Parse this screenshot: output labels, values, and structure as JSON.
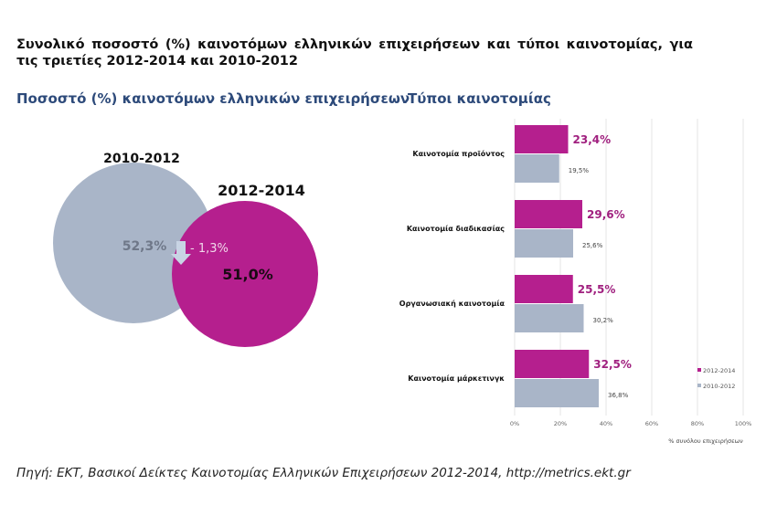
{
  "title": "Συνολικό ποσοστό (%) καινοτόμων ελληνικών επιχειρήσεων και τύποι καινοτομίας, για τις τριετίες 2012-2014 και 2010-2012",
  "source": "Πηγή: ΕΚΤ, Βασικοί Δείκτες Καινοτομίας Ελληνικών Επιχειρήσεων 2012-2014, http://metrics.ekt.gr",
  "colors": {
    "magenta": "#b51f8e",
    "gray": "#a9b5c8",
    "subtitle": "#2d4a7a",
    "arrow": "#c8d4e4"
  },
  "chart_data": [
    {
      "type": "venn",
      "title": "Ποσοστό (%) καινοτόμων ελληνικών επιχειρήσεων",
      "series": [
        {
          "name": "2010-2012",
          "value": 52.3,
          "label": "52,3%"
        },
        {
          "name": "2012-2014",
          "value": 51.0,
          "label": "51,0%"
        }
      ],
      "change_label": "- 1,3%"
    },
    {
      "type": "bar",
      "orientation": "horizontal",
      "title": "Τύποι καινοτομίας",
      "categories": [
        "Καινοτομία προϊόντος",
        "Καινοτομία διαδικασίας",
        "Οργανωσιακή καινοτομία",
        "Καινοτομία μάρκετινγκ"
      ],
      "series": [
        {
          "name": "2012-2014",
          "values": [
            23.4,
            29.6,
            25.5,
            32.5
          ],
          "labels": [
            "23,4%",
            "29,6%",
            "25,5%",
            "32,5%"
          ]
        },
        {
          "name": "2010-2012",
          "values": [
            19.5,
            25.6,
            30.2,
            36.8
          ],
          "labels": [
            "19,5%",
            "25,6%",
            "30,2%",
            "36,8%"
          ]
        }
      ],
      "xlim": [
        0,
        100
      ],
      "xticks": [
        "0%",
        "20%",
        "40%",
        "60%",
        "80%",
        "100%"
      ],
      "xlabel": "% συνόλου επιχειρήσεων",
      "grid": true,
      "legend": "right"
    }
  ]
}
